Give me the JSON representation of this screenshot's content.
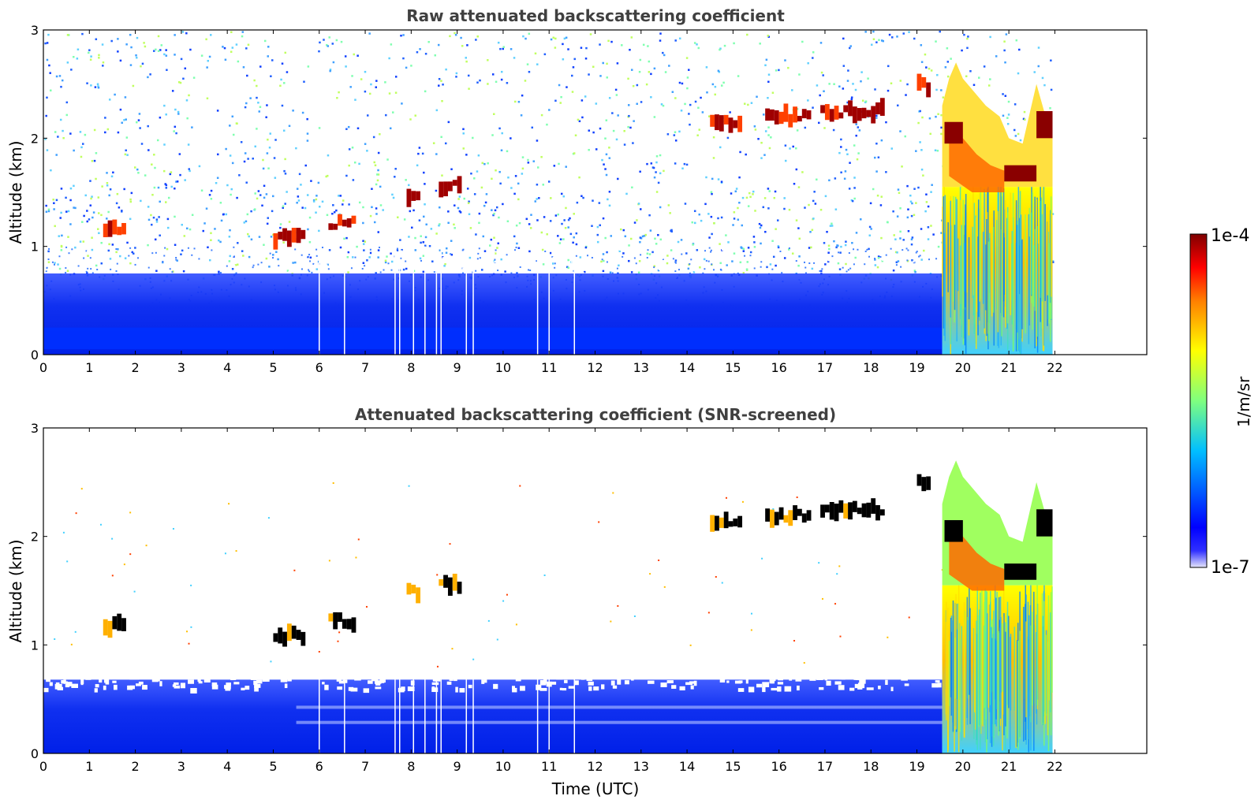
{
  "chart_data": [
    {
      "type": "heatmap",
      "title": "Raw attenuated backscattering coefficient",
      "xlabel": "",
      "ylabel": "Altitude (km)",
      "xlim": [
        0,
        24
      ],
      "ylim": [
        0,
        3
      ],
      "x_ticks": [
        "0",
        "1",
        "2",
        "3",
        "4",
        "5",
        "6",
        "7",
        "8",
        "9",
        "10",
        "11",
        "12",
        "13",
        "14",
        "15",
        "16",
        "17",
        "18",
        "19",
        "20",
        "21",
        "22"
      ],
      "y_ticks": [
        "0",
        "1",
        "2",
        "3"
      ],
      "data_end_time": 21.95,
      "cloud_onset_time": 19.55,
      "features": [
        {
          "t0": 1.3,
          "t1": 1.8,
          "alt": 1.18,
          "value": "1e-4"
        },
        {
          "t0": 5.0,
          "t1": 5.7,
          "alt": 1.08,
          "value": "1e-4"
        },
        {
          "t0": 6.2,
          "t1": 6.8,
          "alt": 1.22,
          "value": "1e-4"
        },
        {
          "t0": 7.9,
          "t1": 8.2,
          "alt": 1.48,
          "value": "1e-4"
        },
        {
          "t0": 8.6,
          "t1": 9.1,
          "alt": 1.56,
          "value": "1e-4"
        },
        {
          "t0": 14.5,
          "t1": 15.2,
          "alt": 2.14,
          "value": "1e-4"
        },
        {
          "t0": 15.7,
          "t1": 16.7,
          "alt": 2.2,
          "value": "1e-4"
        },
        {
          "t0": 16.9,
          "t1": 18.3,
          "alt": 2.25,
          "value": "1e-4"
        },
        {
          "t0": 19.0,
          "t1": 19.3,
          "alt": 2.48,
          "value": "1e-4"
        },
        {
          "t0": 19.6,
          "t1": 21.9,
          "alt": 1.6,
          "value": "1e-5"
        }
      ]
    },
    {
      "type": "heatmap",
      "title": "Attenuated backscattering coefficient (SNR-screened)",
      "xlabel": "Time (UTC)",
      "ylabel": "Altitude (km)",
      "xlim": [
        0,
        24
      ],
      "ylim": [
        0,
        3
      ],
      "x_ticks": [
        "0",
        "1",
        "2",
        "3",
        "4",
        "5",
        "6",
        "7",
        "8",
        "9",
        "10",
        "11",
        "12",
        "13",
        "14",
        "15",
        "16",
        "17",
        "18",
        "19",
        "20",
        "21",
        "22"
      ],
      "y_ticks": [
        "0",
        "1",
        "2",
        "3"
      ],
      "boundary_layer_top_km": 0.68,
      "data_end_time": 21.95,
      "cloud_onset_time": 19.55
    }
  ],
  "colorbar": {
    "label": "1/m/sr",
    "max_label": "1e-4",
    "min_label": "1e-7",
    "colormap": "jet",
    "colors": [
      "#e6e6fa",
      "#0000ff",
      "#00bfff",
      "#7fff7f",
      "#ffff00",
      "#ff7f00",
      "#ff0000",
      "#7f0000"
    ]
  }
}
